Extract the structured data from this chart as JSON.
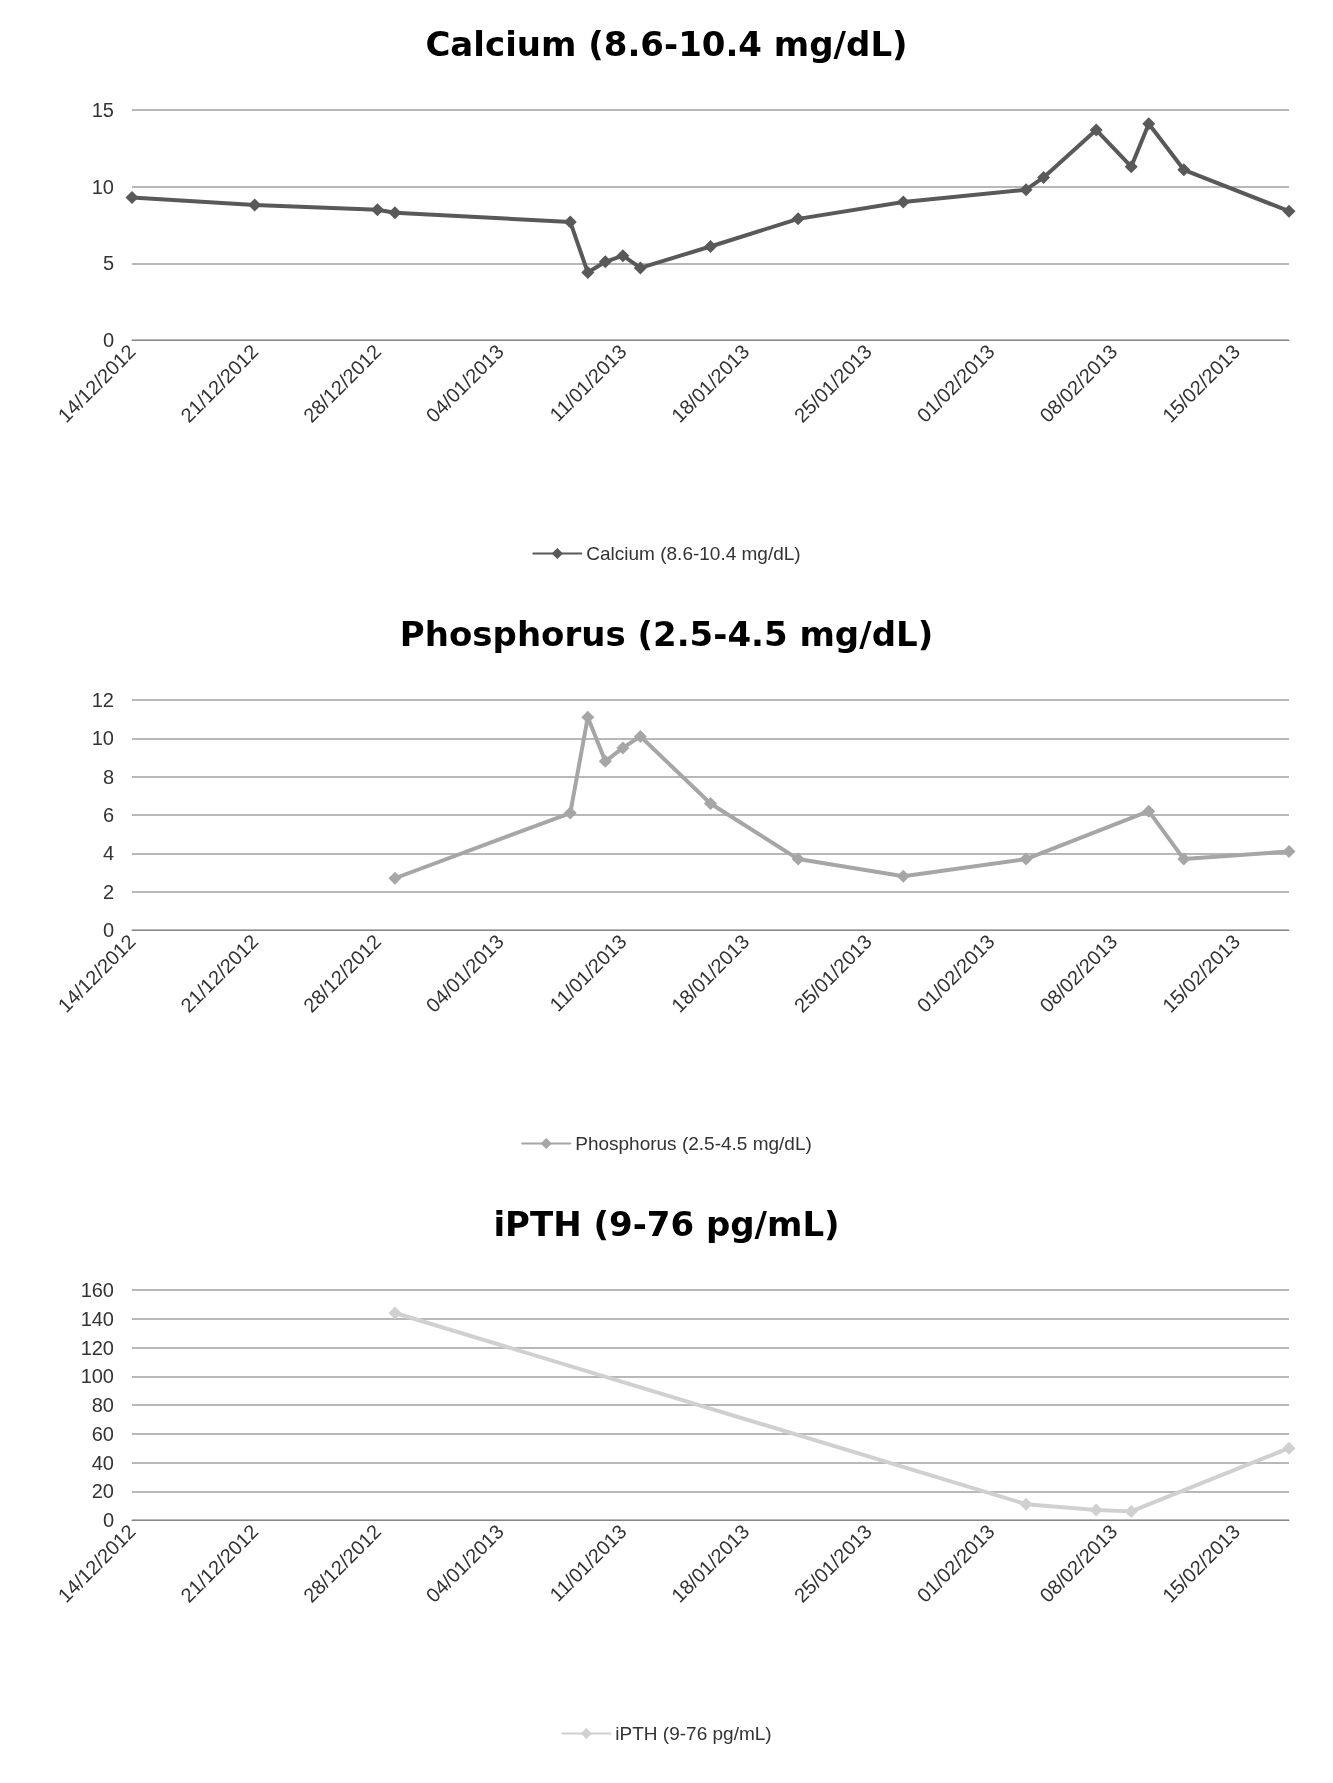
{
  "chart_data": [
    {
      "type": "line",
      "title": "Calcium (8.6-10.4 mg/dL)",
      "series": [
        {
          "name": "Calcium (8.6-10.4 mg/dL)",
          "color": "#595959",
          "x": [
            "2012-12-14",
            "2012-12-21",
            "2012-12-28",
            "2012-12-29",
            "2013-01-08",
            "2013-01-09",
            "2013-01-10",
            "2013-01-11",
            "2013-01-12",
            "2013-01-16",
            "2013-01-21",
            "2013-01-27",
            "2013-02-03",
            "2013-02-04",
            "2013-02-07",
            "2013-02-09",
            "2013-02-10",
            "2013-02-12",
            "2013-02-18"
          ],
          "values": [
            9.3,
            8.8,
            8.5,
            8.3,
            7.7,
            4.4,
            5.1,
            5.5,
            4.7,
            6.1,
            7.9,
            9.0,
            9.8,
            10.6,
            13.7,
            11.3,
            14.1,
            11.1,
            8.4
          ]
        }
      ],
      "xlim": [
        "2012-12-14",
        "2013-02-18"
      ],
      "xticks": [
        {
          "value": "2012-12-14",
          "label": "14/12/2012"
        },
        {
          "value": "2012-12-21",
          "label": "21/12/2012"
        },
        {
          "value": "2012-12-28",
          "label": "28/12/2012"
        },
        {
          "value": "2013-01-04",
          "label": "04/01/2013"
        },
        {
          "value": "2013-01-11",
          "label": "11/01/2013"
        },
        {
          "value": "2013-01-18",
          "label": "18/01/2013"
        },
        {
          "value": "2013-01-25",
          "label": "25/01/2013"
        },
        {
          "value": "2013-02-01",
          "label": "01/02/2013"
        },
        {
          "value": "2013-02-08",
          "label": "08/02/2013"
        },
        {
          "value": "2013-02-15",
          "label": "15/02/2013"
        }
      ],
      "ylim": [
        0,
        15
      ],
      "yticks": [
        0,
        5,
        10,
        15
      ],
      "grid": "y",
      "legend": "bottom",
      "marker": "diamond",
      "line_style": "solid"
    },
    {
      "type": "line",
      "title": "Phosphorus (2.5-4.5 mg/dL)",
      "series": [
        {
          "name": "Phosphorus (2.5-4.5 mg/dL)",
          "color": "#a6a6a6",
          "x": [
            "2012-12-29",
            "2013-01-08",
            "2013-01-09",
            "2013-01-10",
            "2013-01-11",
            "2013-01-12",
            "2013-01-16",
            "2013-01-21",
            "2013-01-27",
            "2013-02-03",
            "2013-02-10",
            "2013-02-12",
            "2013-02-18"
          ],
          "values": [
            2.7,
            6.1,
            11.1,
            8.8,
            9.5,
            10.1,
            6.6,
            3.7,
            2.8,
            3.7,
            6.2,
            3.7,
            4.1
          ]
        }
      ],
      "xlim": [
        "2012-12-14",
        "2013-02-18"
      ],
      "xticks": [
        {
          "value": "2012-12-14",
          "label": "14/12/2012"
        },
        {
          "value": "2012-12-21",
          "label": "21/12/2012"
        },
        {
          "value": "2012-12-28",
          "label": "28/12/2012"
        },
        {
          "value": "2013-01-04",
          "label": "04/01/2013"
        },
        {
          "value": "2013-01-11",
          "label": "11/01/2013"
        },
        {
          "value": "2013-01-18",
          "label": "18/01/2013"
        },
        {
          "value": "2013-01-25",
          "label": "25/01/2013"
        },
        {
          "value": "2013-02-01",
          "label": "01/02/2013"
        },
        {
          "value": "2013-02-08",
          "label": "08/02/2013"
        },
        {
          "value": "2013-02-15",
          "label": "15/02/2013"
        }
      ],
      "ylim": [
        0,
        12
      ],
      "yticks": [
        0,
        2,
        4,
        6,
        8,
        10,
        12
      ],
      "grid": "y",
      "legend": "bottom",
      "marker": "diamond",
      "line_style": "solid"
    },
    {
      "type": "line",
      "title": "iPTH (9-76 pg/mL)",
      "series": [
        {
          "name": "iPTH (9-76 pg/mL)",
          "color": "#d0d0d0",
          "x": [
            "2012-12-29",
            "2013-02-03",
            "2013-02-07",
            "2013-02-09",
            "2013-02-18"
          ],
          "values": [
            144,
            11,
            7,
            6,
            50
          ]
        }
      ],
      "xlim": [
        "2012-12-14",
        "2013-02-18"
      ],
      "xticks": [
        {
          "value": "2012-12-14",
          "label": "14/12/2012"
        },
        {
          "value": "2012-12-21",
          "label": "21/12/2012"
        },
        {
          "value": "2012-12-28",
          "label": "28/12/2012"
        },
        {
          "value": "2013-01-04",
          "label": "04/01/2013"
        },
        {
          "value": "2013-01-11",
          "label": "11/01/2013"
        },
        {
          "value": "2013-01-18",
          "label": "18/01/2013"
        },
        {
          "value": "2013-01-25",
          "label": "25/01/2013"
        },
        {
          "value": "2013-02-01",
          "label": "01/02/2013"
        },
        {
          "value": "2013-02-08",
          "label": "08/02/2013"
        },
        {
          "value": "2013-02-15",
          "label": "15/02/2013"
        }
      ],
      "ylim": [
        0,
        160
      ],
      "yticks": [
        0,
        20,
        40,
        60,
        80,
        100,
        120,
        140,
        160
      ],
      "grid": "y",
      "legend": "bottom",
      "marker": "diamond",
      "line_style": "solid"
    }
  ]
}
